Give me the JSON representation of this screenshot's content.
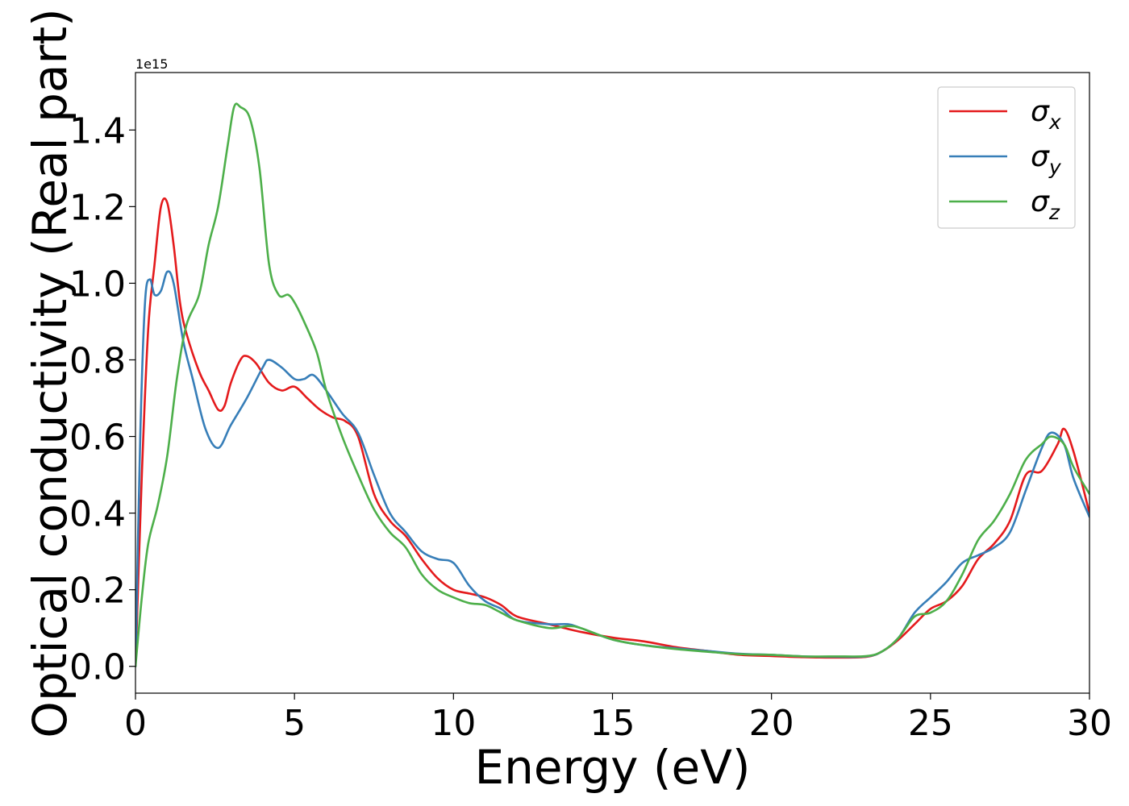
{
  "chart_data": {
    "type": "line",
    "title": "",
    "xlabel": "Energy (eV)",
    "ylabel": "Optical conductivity (Real part)",
    "y_offset_label": "1e15",
    "y_scale": 1000000000000000.0,
    "xlim": [
      0,
      30
    ],
    "ylim": [
      -0.07,
      1.55
    ],
    "x_ticks": [
      0,
      5,
      10,
      15,
      20,
      25,
      30
    ],
    "x_tick_labels": [
      "0",
      "5",
      "10",
      "15",
      "20",
      "25",
      "30"
    ],
    "y_ticks": [
      0.0,
      0.2,
      0.4,
      0.6,
      0.8,
      1.0,
      1.2,
      1.4
    ],
    "y_tick_labels": [
      "0.0",
      "0.2",
      "0.4",
      "0.6",
      "0.8",
      "1.0",
      "1.2",
      "1.4"
    ],
    "grid": false,
    "legend_position": "top-right",
    "series": [
      {
        "name": "σx",
        "legend_base": "σ",
        "legend_sub": "x",
        "color": "#e41a1c",
        "x": [
          0,
          0.2,
          0.4,
          0.6,
          0.8,
          1.0,
          1.2,
          1.4,
          1.6,
          2.0,
          2.3,
          2.6,
          2.8,
          3.0,
          3.3,
          3.5,
          3.8,
          4.2,
          4.6,
          5.0,
          5.4,
          5.8,
          6.2,
          6.6,
          7.0,
          7.5,
          8.0,
          8.5,
          9.0,
          9.5,
          10.0,
          10.5,
          11.0,
          11.5,
          12.0,
          13.0,
          14.0,
          15.0,
          16.0,
          17.0,
          18.0,
          19.0,
          20.0,
          21.0,
          22.0,
          23.0,
          23.5,
          24.0,
          24.5,
          25.0,
          25.5,
          26.0,
          26.5,
          27.0,
          27.5,
          28.0,
          28.5,
          29.0,
          29.2,
          29.5,
          30.0
        ],
        "y": [
          0.0,
          0.5,
          0.88,
          1.05,
          1.2,
          1.21,
          1.1,
          0.95,
          0.87,
          0.77,
          0.72,
          0.67,
          0.68,
          0.74,
          0.8,
          0.81,
          0.79,
          0.74,
          0.72,
          0.73,
          0.7,
          0.67,
          0.65,
          0.64,
          0.6,
          0.45,
          0.38,
          0.34,
          0.28,
          0.23,
          0.2,
          0.19,
          0.18,
          0.16,
          0.13,
          0.11,
          0.09,
          0.075,
          0.065,
          0.05,
          0.04,
          0.03,
          0.027,
          0.024,
          0.023,
          0.025,
          0.04,
          0.07,
          0.11,
          0.15,
          0.17,
          0.21,
          0.28,
          0.32,
          0.38,
          0.5,
          0.51,
          0.58,
          0.62,
          0.56,
          0.4
        ]
      },
      {
        "name": "σy",
        "legend_base": "σ",
        "legend_sub": "y",
        "color": "#377eb8",
        "x": [
          0,
          0.15,
          0.3,
          0.45,
          0.6,
          0.8,
          1.0,
          1.2,
          1.5,
          1.8,
          2.2,
          2.6,
          3.0,
          3.5,
          4.0,
          4.2,
          4.6,
          5.0,
          5.3,
          5.6,
          6.0,
          6.5,
          7.0,
          7.5,
          8.0,
          8.5,
          9.0,
          9.5,
          10.0,
          10.5,
          11.0,
          11.5,
          12.0,
          13.0,
          13.6,
          14.0,
          15.0,
          16.0,
          17.0,
          18.0,
          19.0,
          20.0,
          21.0,
          22.0,
          23.0,
          23.5,
          24.0,
          24.5,
          25.0,
          25.5,
          26.0,
          26.5,
          27.0,
          27.5,
          28.0,
          28.5,
          28.8,
          29.2,
          29.5,
          30.0
        ],
        "y": [
          0.0,
          0.6,
          0.95,
          1.01,
          0.97,
          0.98,
          1.03,
          1.0,
          0.85,
          0.75,
          0.62,
          0.57,
          0.63,
          0.7,
          0.78,
          0.8,
          0.78,
          0.75,
          0.75,
          0.76,
          0.72,
          0.66,
          0.61,
          0.5,
          0.4,
          0.35,
          0.3,
          0.28,
          0.27,
          0.21,
          0.17,
          0.15,
          0.12,
          0.11,
          0.11,
          0.1,
          0.07,
          0.055,
          0.047,
          0.04,
          0.033,
          0.03,
          0.026,
          0.025,
          0.026,
          0.04,
          0.075,
          0.14,
          0.18,
          0.22,
          0.27,
          0.29,
          0.31,
          0.35,
          0.46,
          0.57,
          0.61,
          0.58,
          0.49,
          0.39
        ]
      },
      {
        "name": "σz",
        "legend_base": "σ",
        "legend_sub": "z",
        "color": "#4daf4a",
        "x": [
          0,
          0.2,
          0.4,
          0.7,
          1.0,
          1.3,
          1.6,
          2.0,
          2.3,
          2.6,
          2.9,
          3.1,
          3.3,
          3.6,
          3.9,
          4.2,
          4.5,
          4.8,
          5.0,
          5.3,
          5.7,
          6.0,
          6.5,
          7.0,
          7.5,
          8.0,
          8.5,
          9.0,
          9.5,
          10.0,
          10.5,
          11.0,
          11.5,
          12.0,
          13.0,
          13.6,
          14.0,
          15.0,
          16.0,
          17.0,
          18.0,
          19.0,
          20.0,
          21.0,
          22.0,
          23.0,
          23.5,
          24.0,
          24.5,
          25.0,
          25.5,
          26.0,
          26.5,
          27.0,
          27.5,
          28.0,
          28.5,
          28.8,
          29.2,
          29.5,
          30.0
        ],
        "y": [
          0.0,
          0.18,
          0.32,
          0.42,
          0.55,
          0.75,
          0.89,
          0.97,
          1.1,
          1.2,
          1.36,
          1.46,
          1.46,
          1.43,
          1.3,
          1.05,
          0.97,
          0.97,
          0.95,
          0.9,
          0.82,
          0.72,
          0.6,
          0.5,
          0.41,
          0.35,
          0.31,
          0.24,
          0.2,
          0.18,
          0.165,
          0.16,
          0.14,
          0.12,
          0.1,
          0.105,
          0.1,
          0.07,
          0.055,
          0.045,
          0.038,
          0.032,
          0.03,
          0.026,
          0.026,
          0.027,
          0.04,
          0.075,
          0.13,
          0.14,
          0.17,
          0.24,
          0.33,
          0.38,
          0.45,
          0.54,
          0.58,
          0.6,
          0.58,
          0.52,
          0.45
        ]
      }
    ]
  }
}
